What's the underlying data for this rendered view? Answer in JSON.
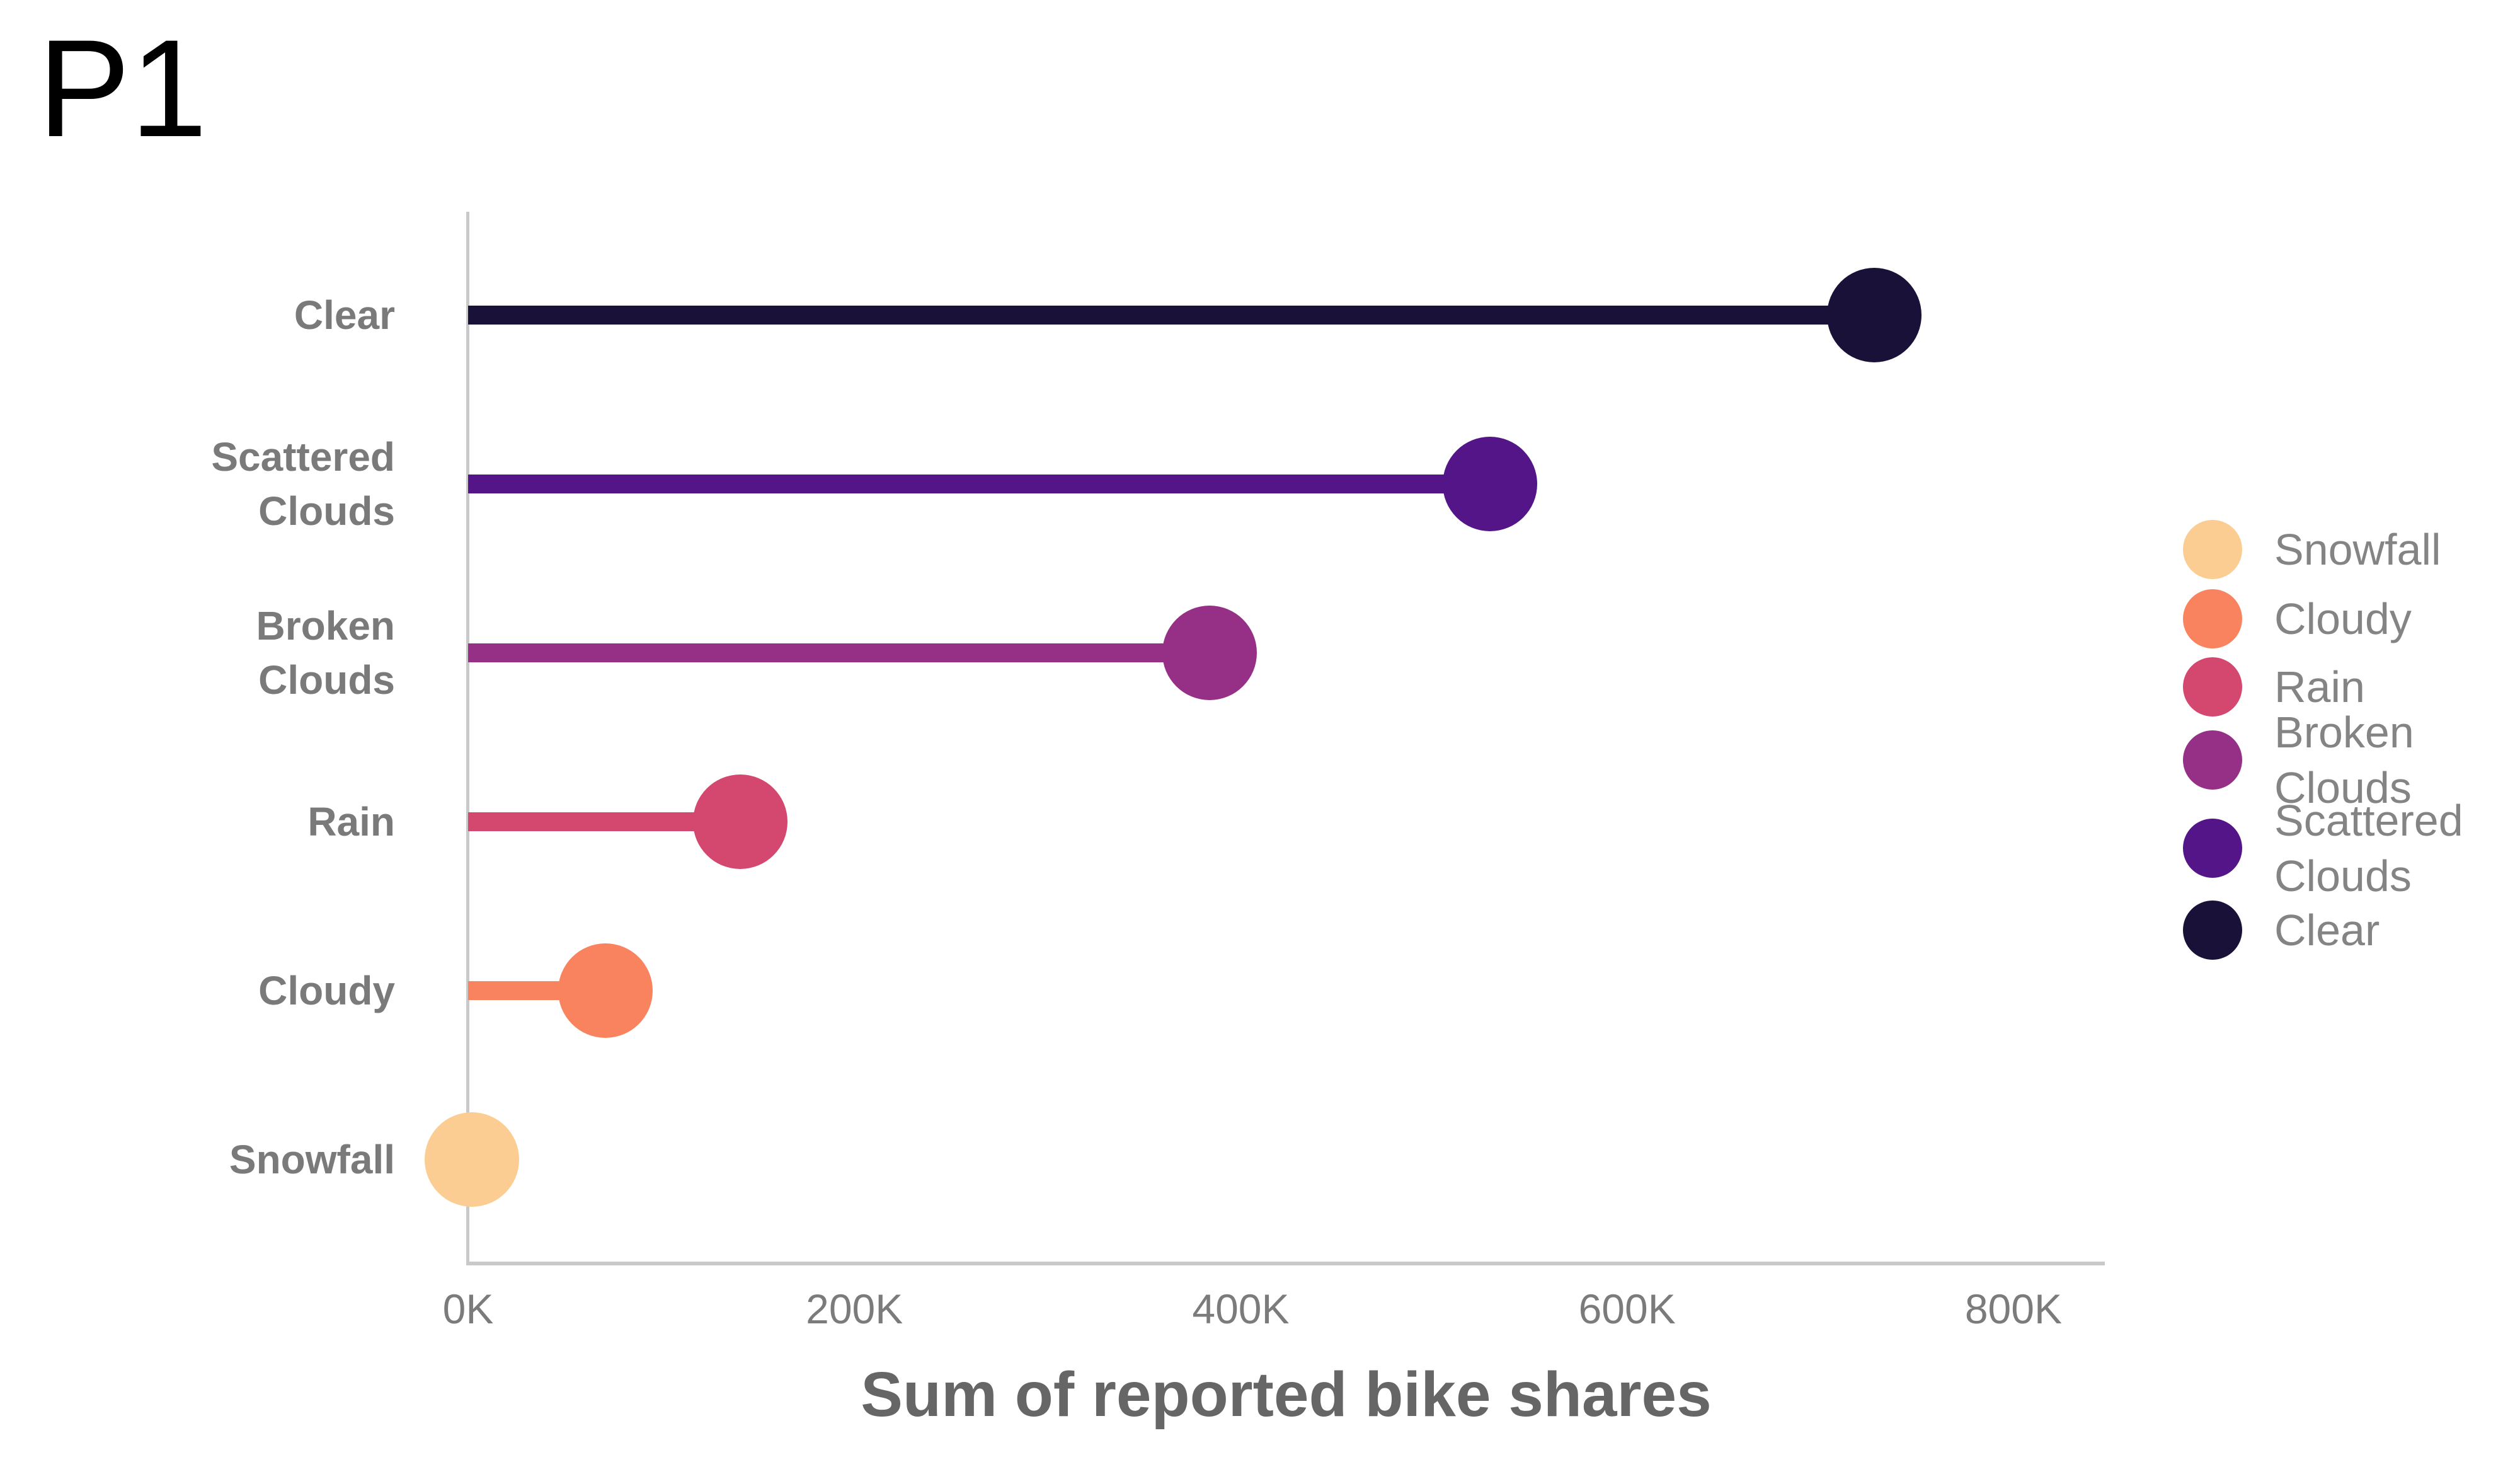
{
  "page_title": "P1",
  "chart_data": {
    "type": "lollipop",
    "orientation": "horizontal",
    "title": "P1",
    "xlabel": "Sum of reported bike shares",
    "xlim": [
      0,
      847000
    ],
    "grid": false,
    "legend_position": "right",
    "x_ticks": [
      {
        "label": "0K",
        "value": 0
      },
      {
        "label": "200K",
        "value": 200000
      },
      {
        "label": "400K",
        "value": 400000
      },
      {
        "label": "600K",
        "value": 600000
      },
      {
        "label": "800K",
        "value": 800000
      }
    ],
    "rows": [
      {
        "category": "Clear",
        "lines": [
          "Clear"
        ],
        "value": 728000,
        "color": "#1A1138"
      },
      {
        "category": "Scattered Clouds",
        "lines": [
          "Scattered",
          "Clouds"
        ],
        "value": 529000,
        "color": "#541589"
      },
      {
        "category": "Broken Clouds",
        "lines": [
          "Broken",
          "Clouds"
        ],
        "value": 384000,
        "color": "#962F86"
      },
      {
        "category": "Rain",
        "lines": [
          "Rain"
        ],
        "value": 141000,
        "color": "#D4476F"
      },
      {
        "category": "Cloudy",
        "lines": [
          "Cloudy"
        ],
        "value": 71000,
        "color": "#F8835E"
      },
      {
        "category": "Snowfall",
        "lines": [
          "Snowfall"
        ],
        "value": 2000,
        "color": "#FBCD92"
      }
    ],
    "legend": [
      {
        "label": "Snowfall",
        "lines": [
          "Snowfall"
        ],
        "color": "#FBCD92"
      },
      {
        "label": "Cloudy",
        "lines": [
          "Cloudy"
        ],
        "color": "#F8835E"
      },
      {
        "label": "Rain",
        "lines": [
          "Rain"
        ],
        "color": "#D4476F"
      },
      {
        "label": "Broken Clouds",
        "lines": [
          "Broken",
          "Clouds"
        ],
        "color": "#962F86"
      },
      {
        "label": "Scattered Clouds",
        "lines": [
          "Scattered",
          "Clouds"
        ],
        "color": "#541589"
      },
      {
        "label": "Clear",
        "lines": [
          "Clear"
        ],
        "color": "#1A1138"
      }
    ],
    "colors": {
      "axis_line": "#C9C9C9",
      "category_label": "#7A7A7A",
      "tick_label": "#7B7B7B",
      "axis_title": "#666666",
      "legend_text": "#848484",
      "background": "#FFFFFF"
    }
  }
}
